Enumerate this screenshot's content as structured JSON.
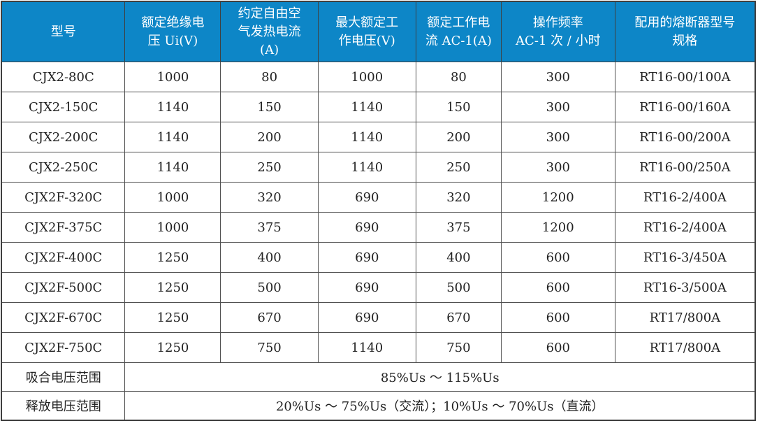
{
  "table": {
    "title_semantic": "contactor-specifications-table",
    "colors": {
      "header_bg": "#0d86c7",
      "header_text": "#ffffff",
      "body_text": "#222222",
      "border": "#4f4f4f",
      "outer_border": "#3f3f3f",
      "body_bg": "#ffffff"
    },
    "columns": [
      {
        "label": "型号",
        "lines": [
          "型号",
          "",
          ""
        ]
      },
      {
        "label": "额定绝缘电压 Ui(V)",
        "lines": [
          "额定绝缘电",
          "压 Ui(V)",
          ""
        ]
      },
      {
        "label": "约定自由空气发热电流(A)",
        "lines": [
          "约定自由空",
          "气发热电流",
          "(A)"
        ]
      },
      {
        "label": "最大额定工作电压(V)",
        "lines": [
          "最大额定工",
          "作电压(V)",
          ""
        ]
      },
      {
        "label": "额定工作电流 AC-1(A)",
        "lines": [
          "额定工作电",
          "流 AC-1(A)",
          ""
        ]
      },
      {
        "label": "操作频率 AC-1 次／小时",
        "lines": [
          "操作频率",
          "AC-1 次 / 小时",
          ""
        ]
      },
      {
        "label": "配用的熔断器型号规格",
        "lines": [
          "配用的熔断器型号",
          "规格",
          ""
        ]
      }
    ],
    "rows": [
      [
        "CJX2-80C",
        "1000",
        "80",
        "1000",
        "80",
        "300",
        "RT16-00/100A"
      ],
      [
        "CJX2-150C",
        "1140",
        "150",
        "1140",
        "150",
        "300",
        "RT16-00/160A"
      ],
      [
        "CJX2-200C",
        "1140",
        "200",
        "1140",
        "200",
        "300",
        "RT16-00/200A"
      ],
      [
        "CJX2-250C",
        "1140",
        "250",
        "1140",
        "250",
        "300",
        "RT16-00/250A"
      ],
      [
        "CJX2F-320C",
        "1000",
        "320",
        "690",
        "320",
        "1200",
        "RT16-2/400A"
      ],
      [
        "CJX2F-375C",
        "1000",
        "375",
        "690",
        "375",
        "1200",
        "RT16-2/400A"
      ],
      [
        "CJX2F-400C",
        "1250",
        "400",
        "690",
        "400",
        "600",
        "RT16-3/450A"
      ],
      [
        "CJX2F-500C",
        "1250",
        "500",
        "690",
        "500",
        "600",
        "RT16-3/500A"
      ],
      [
        "CJX2F-670C",
        "1250",
        "670",
        "690",
        "670",
        "600",
        "RT17/800A"
      ],
      [
        "CJX2F-750C",
        "1250",
        "750",
        "1140",
        "750",
        "600",
        "RT17/800A"
      ]
    ],
    "footer_rows": [
      {
        "label": "吸合电压范围",
        "value": "85%Us ～ 115%Us"
      },
      {
        "label": "释放电压范围",
        "value": "20%Us ～ 75%Us（交流）；10%Us ～ 70%Us（直流）"
      }
    ]
  }
}
